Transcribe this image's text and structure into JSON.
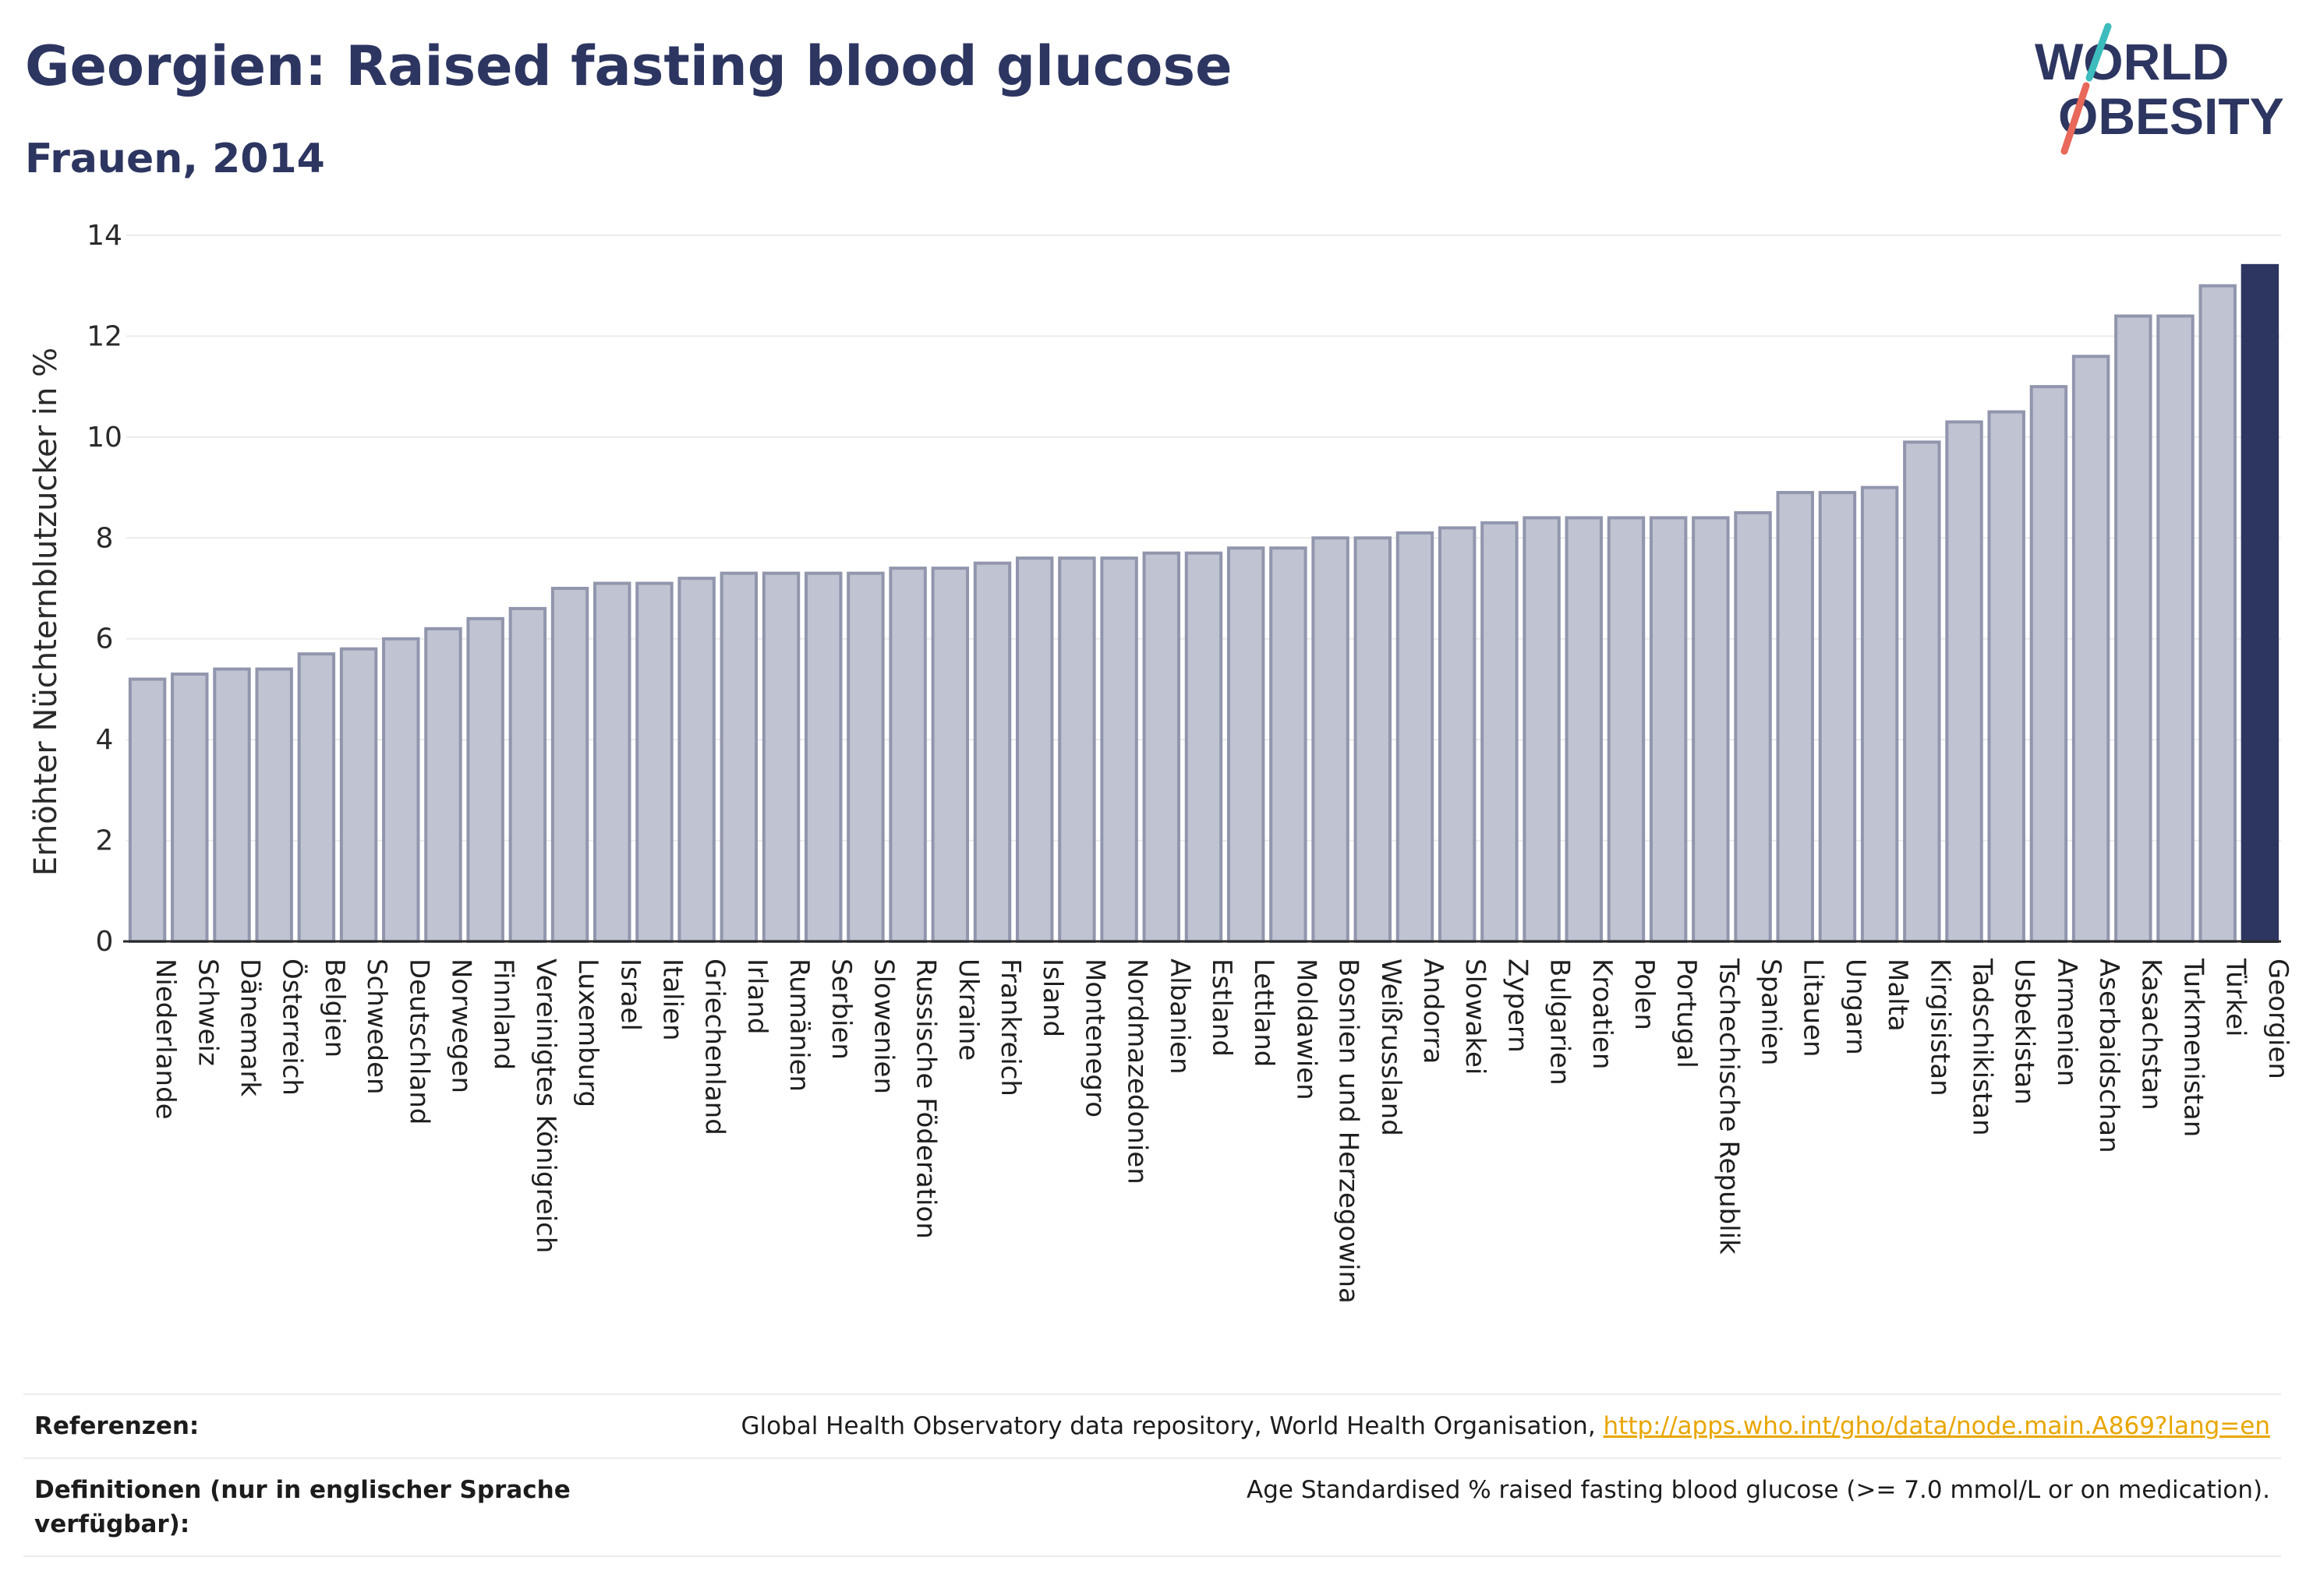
{
  "header": {
    "title": "Georgien: Raised fasting blood glucose",
    "subtitle": "Frauen, 2014"
  },
  "logo": {
    "line1": "WORLD",
    "line2": "OBESITY"
  },
  "colors": {
    "bar": "#bfc3d2",
    "bar_border": "#9196ad",
    "highlight": "#2d3561",
    "title": "#2d3561",
    "link": "#e8a600",
    "logo_slash_top": "#3cbcbc",
    "logo_slash_bottom": "#e8685a"
  },
  "chart_data": {
    "type": "bar",
    "ylabel": "Erhöhter Nüchternblutzucker in %",
    "ylim": [
      0,
      14
    ],
    "yticks": [
      0,
      2,
      4,
      6,
      8,
      10,
      12,
      14
    ],
    "grid": true,
    "highlight": "Georgien",
    "categories": [
      "Niederlande",
      "Schweiz",
      "Dänemark",
      "Österreich",
      "Belgien",
      "Schweden",
      "Deutschland",
      "Norwegen",
      "Finnland",
      "Vereinigtes Königreich",
      "Luxemburg",
      "Israel",
      "Italien",
      "Griechenland",
      "Irland",
      "Rumänien",
      "Serbien",
      "Slowenien",
      "Russische Föderation",
      "Ukraine",
      "Frankreich",
      "Island",
      "Montenegro",
      "Nordmazedonien",
      "Albanien",
      "Estland",
      "Lettland",
      "Moldawien",
      "Bosnien und Herzegowina",
      "Weißrussland",
      "Andorra",
      "Slowakei",
      "Zypern",
      "Bulgarien",
      "Kroatien",
      "Polen",
      "Portugal",
      "Tschechische Republik",
      "Spanien",
      "Litauen",
      "Ungarn",
      "Malta",
      "Kirgisistan",
      "Tadschikistan",
      "Usbekistan",
      "Armenien",
      "Aserbaidschan",
      "Kasachstan",
      "Turkmenistan",
      "Türkei",
      "Georgien"
    ],
    "values": [
      5.2,
      5.3,
      5.4,
      5.4,
      5.7,
      5.8,
      6.0,
      6.2,
      6.4,
      6.6,
      7.0,
      7.1,
      7.1,
      7.2,
      7.3,
      7.3,
      7.3,
      7.3,
      7.4,
      7.4,
      7.5,
      7.6,
      7.6,
      7.6,
      7.7,
      7.7,
      7.8,
      7.8,
      8.0,
      8.0,
      8.1,
      8.2,
      8.3,
      8.4,
      8.4,
      8.4,
      8.4,
      8.4,
      8.5,
      8.9,
      8.9,
      9.0,
      9.9,
      10.3,
      10.5,
      11.0,
      11.6,
      12.4,
      12.4,
      13.0,
      13.4
    ]
  },
  "footer": {
    "references_label": "Referenzen:",
    "references_text": "Global Health Observatory data repository, World Health Organisation, ",
    "references_link": "http://apps.who.int/gho/data/node.main.A869?lang=en",
    "definitions_label": "Definitionen (nur in englischer Sprache verfügbar):",
    "definitions_text": "Age Standardised % raised fasting blood glucose (>= 7.0 mmol/L or on medication)."
  }
}
